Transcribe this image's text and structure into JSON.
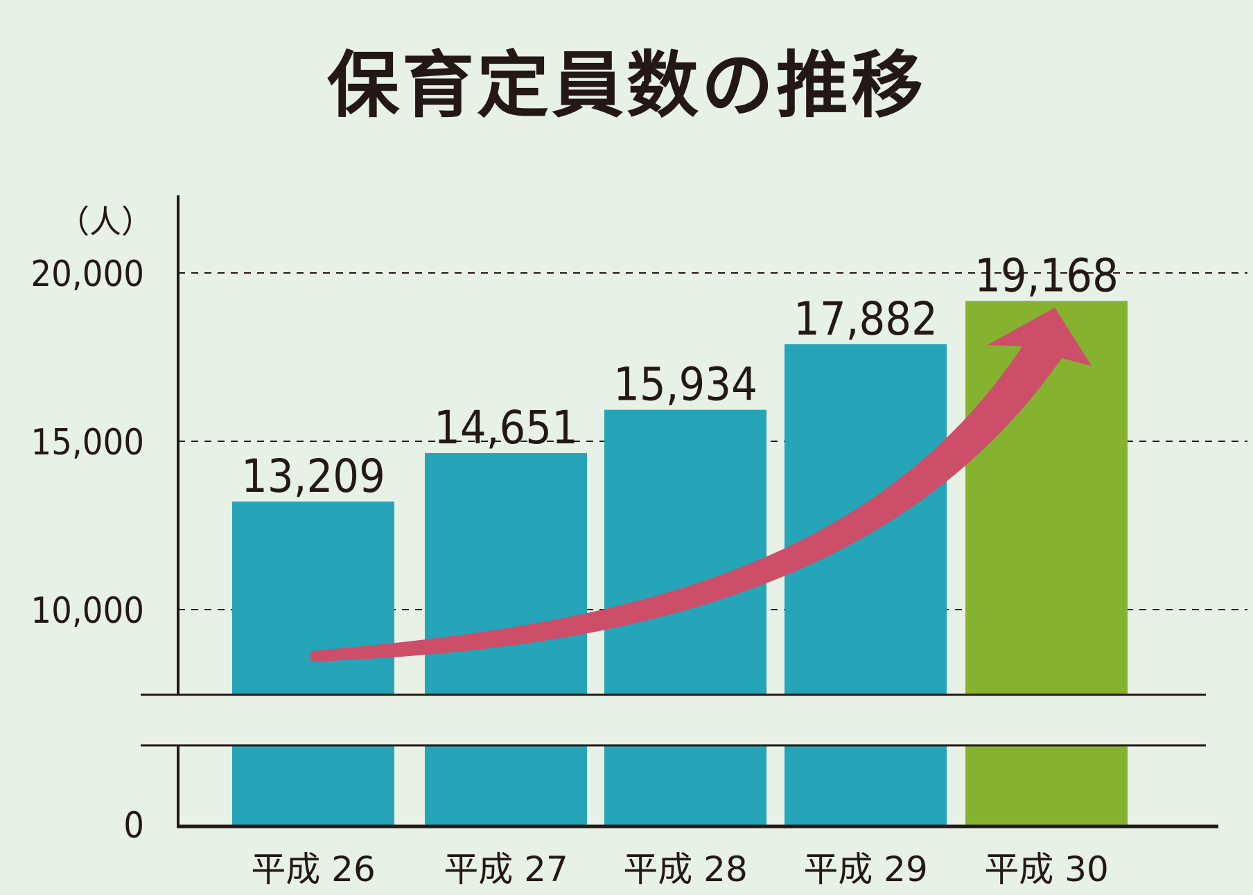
{
  "chart_data": {
    "type": "bar",
    "title": "保育定員数の推移",
    "ylabel": "（人）",
    "categories": [
      "平成 26",
      "平成 27",
      "平成 28",
      "平成 29",
      "平成 30"
    ],
    "values": [
      13209,
      14651,
      15934,
      17882,
      19168
    ],
    "value_labels": [
      "13,209",
      "14,651",
      "15,934",
      "17,882",
      "19,168"
    ],
    "yticks": [
      {
        "value": 0,
        "label": "0"
      },
      {
        "value": 10000,
        "label": "10,000"
      },
      {
        "value": 15000,
        "label": "15,000"
      },
      {
        "value": 20000,
        "label": "20,000"
      }
    ],
    "axis_break": {
      "from": 0,
      "to": 7500
    },
    "ylim": [
      0,
      22000
    ],
    "grid": "dashed at 10,000 / 15,000 / 20,000",
    "colors": {
      "bar": "#26a4b8",
      "highlight_bar": "#86b32f",
      "arrow": "#cc4e68",
      "axis": "#231815",
      "background": "#e8f1e6"
    },
    "highlight_index": 4
  }
}
